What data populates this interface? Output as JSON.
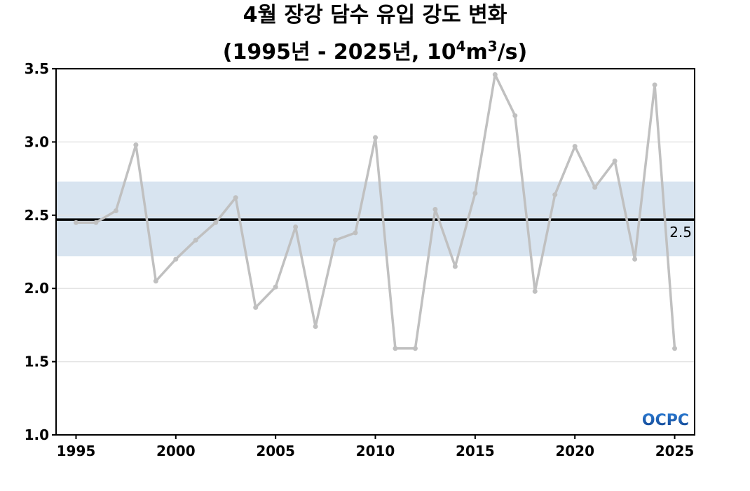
{
  "title": {
    "line1": "4월 장강 담수 유입 강도 변화",
    "line2_prefix": "(1995년 - 2025년, 10",
    "line2_exp1": "4",
    "line2_mid": "m",
    "line2_exp2": "3",
    "line2_suffix": "/s)"
  },
  "logo": {
    "text": "OCPC",
    "color_top": "#2f7fd6",
    "color_bottom": "#0d3f8c"
  },
  "colors": {
    "line": "#c0c0c0",
    "band": "#d8e4f0",
    "mean": "#000000",
    "grid": "#e4e4e4"
  },
  "chart_data": {
    "type": "line",
    "x": [
      1995,
      1996,
      1997,
      1998,
      1999,
      2000,
      2001,
      2002,
      2003,
      2004,
      2005,
      2006,
      2007,
      2008,
      2009,
      2010,
      2011,
      2012,
      2013,
      2014,
      2015,
      2016,
      2017,
      2018,
      2019,
      2020,
      2021,
      2022,
      2023,
      2024,
      2025
    ],
    "series": [
      {
        "values": [
          2.45,
          2.45,
          2.53,
          2.98,
          2.05,
          2.2,
          2.33,
          2.45,
          2.62,
          1.87,
          2.01,
          2.42,
          1.74,
          2.33,
          2.38,
          3.03,
          1.59,
          1.59,
          2.54,
          2.15,
          2.65,
          3.46,
          3.18,
          1.98,
          2.64,
          2.97,
          2.69,
          2.87,
          2.2,
          3.39,
          1.59
        ]
      }
    ],
    "mean": 2.47,
    "mean_label": "2.5",
    "band": [
      2.22,
      2.73
    ],
    "xlim": [
      1994,
      2026
    ],
    "ylim": [
      1.0,
      3.5
    ],
    "xticks": [
      1995,
      2000,
      2005,
      2010,
      2015,
      2020,
      2025
    ],
    "xtick_labels": [
      "1995",
      "2000",
      "2005",
      "2010",
      "2015",
      "2020",
      "2025"
    ],
    "yticks": [
      1.0,
      1.5,
      2.0,
      2.5,
      3.0,
      3.5
    ],
    "ytick_labels": [
      "1.0",
      "1.5",
      "2.0",
      "2.5",
      "3.0",
      "3.5"
    ],
    "grid": true
  }
}
